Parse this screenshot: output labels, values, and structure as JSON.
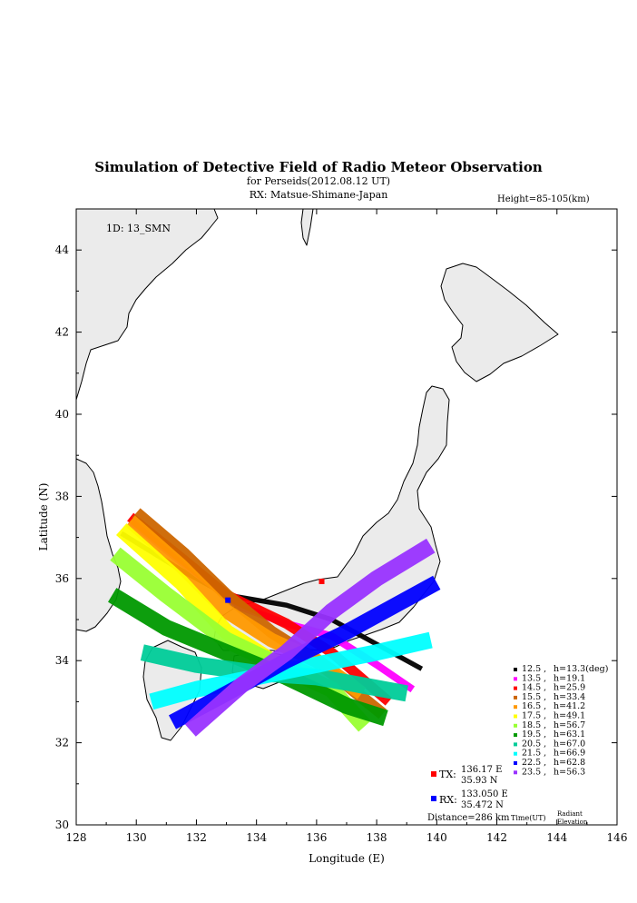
{
  "chart_data": {
    "type": "map",
    "title": "Simulation of Detective Field of Radio Meteor Observation",
    "subtitle1": "for Perseids(2012.08.12 UT)",
    "subtitle2": "RX: Matsue-Shimane-Japan",
    "height_note": "Height=85-105(km)",
    "id_label": "1D: 13_SMN",
    "xlabel": "Longitude (E)",
    "ylabel": "Latitude (N)",
    "xlim": [
      128,
      146
    ],
    "ylim": [
      30,
      45
    ],
    "xticks": [
      128,
      130,
      132,
      134,
      136,
      138,
      140,
      142,
      144,
      146
    ],
    "yticks": [
      30,
      32,
      34,
      36,
      38,
      40,
      42,
      44
    ],
    "tx": {
      "label": "TX:",
      "lon": 136.17,
      "lat": 35.93,
      "lon_text": "136.17 E",
      "lat_text": "35.93 N",
      "color": "#ff0000"
    },
    "rx": {
      "label": "RX:",
      "lon": 133.05,
      "lat": 35.472,
      "lon_text": "133.050 E",
      "lat_text": "35.472 N",
      "color": "#0000ff"
    },
    "distance": "Distance=286 km",
    "time_label": "Time(UT)",
    "radiant_label": "Radiant\nElevation",
    "series": [
      {
        "time": "12.5",
        "h": "h=13.3(deg)",
        "color": "#000000",
        "width": 0.12,
        "pts": [
          [
            129.5,
            37.1
          ],
          [
            131.5,
            36.2
          ],
          [
            133,
            35.6
          ],
          [
            135,
            35.35
          ],
          [
            136.5,
            35.0
          ],
          [
            138,
            34.4
          ],
          [
            139.5,
            33.8
          ]
        ]
      },
      {
        "time": "13.5",
        "h": "h=19.1",
        "color": "#ff00ff",
        "width": 0.18,
        "pts": [
          [
            129.8,
            37.4
          ],
          [
            131.5,
            36.4
          ],
          [
            133.5,
            35.3
          ],
          [
            135,
            34.9
          ],
          [
            136.5,
            34.6
          ],
          [
            138,
            33.9
          ],
          [
            139.2,
            33.3
          ]
        ]
      },
      {
        "time": "14.5",
        "h": "h=25.9",
        "color": "#ff0000",
        "width": 0.25,
        "pts": [
          [
            129.8,
            37.5
          ],
          [
            131.5,
            36.5
          ],
          [
            133,
            35.6
          ],
          [
            135,
            34.9
          ],
          [
            136.5,
            34.2
          ],
          [
            138.4,
            33.0
          ]
        ]
      },
      {
        "time": "15.5",
        "h": "h=33.4",
        "color": "#cc6600",
        "width": 0.3,
        "pts": [
          [
            130.0,
            37.6
          ],
          [
            131.6,
            36.6
          ],
          [
            133,
            35.6
          ],
          [
            134.5,
            34.7
          ],
          [
            136,
            34.0
          ],
          [
            138.2,
            32.7
          ]
        ]
      },
      {
        "time": "16.5",
        "h": "h=41.2",
        "color": "#ff9900",
        "width": 0.35,
        "pts": [
          [
            129.8,
            37.4
          ],
          [
            131.5,
            36.3
          ],
          [
            133,
            35.2
          ],
          [
            134.5,
            34.5
          ],
          [
            136,
            34.0
          ],
          [
            137.5,
            33.2
          ]
        ]
      },
      {
        "time": "17.5",
        "h": "h=49.1",
        "color": "#ffff00",
        "width": 0.38,
        "pts": [
          [
            129.5,
            37.2
          ],
          [
            131.5,
            35.9
          ],
          [
            133,
            34.7
          ],
          [
            134.5,
            34.0
          ],
          [
            136,
            33.6
          ]
        ]
      },
      {
        "time": "18.5",
        "h": "h=56.7",
        "color": "#99ff33",
        "width": 0.4,
        "pts": [
          [
            129.3,
            36.6
          ],
          [
            131,
            35.6
          ],
          [
            133,
            34.5
          ],
          [
            135,
            33.8
          ],
          [
            136.5,
            33.3
          ],
          [
            137.6,
            32.4
          ]
        ]
      },
      {
        "time": "19.5",
        "h": "h=63.1",
        "color": "#009900",
        "width": 0.4,
        "pts": [
          [
            129.2,
            35.6
          ],
          [
            131,
            34.8
          ],
          [
            133,
            34.2
          ],
          [
            135,
            33.6
          ],
          [
            137,
            32.9
          ],
          [
            138.3,
            32.6
          ]
        ]
      },
      {
        "time": "20.5",
        "h": "h=67.0",
        "color": "#00cc99",
        "width": 0.4,
        "pts": [
          [
            130.2,
            34.2
          ],
          [
            132,
            33.9
          ],
          [
            134,
            33.7
          ],
          [
            136,
            33.6
          ],
          [
            137.5,
            33.4
          ],
          [
            139,
            33.2
          ]
        ]
      },
      {
        "time": "21.5",
        "h": "h=66.9",
        "color": "#00ffff",
        "width": 0.4,
        "pts": [
          [
            130.5,
            33.0
          ],
          [
            132,
            33.3
          ],
          [
            134,
            33.6
          ],
          [
            136,
            33.9
          ],
          [
            138,
            34.2
          ],
          [
            139.8,
            34.5
          ]
        ]
      },
      {
        "time": "22.5",
        "h": "h=62.8",
        "color": "#0000ff",
        "width": 0.38,
        "pts": [
          [
            131.2,
            32.5
          ],
          [
            133,
            33.2
          ],
          [
            135,
            34.0
          ],
          [
            137,
            34.7
          ],
          [
            138.5,
            35.3
          ],
          [
            140,
            35.9
          ]
        ]
      },
      {
        "time": "23.5",
        "h": "h=56.3",
        "color": "#9933ff",
        "width": 0.4,
        "pts": [
          [
            131.8,
            32.3
          ],
          [
            133.5,
            33.4
          ],
          [
            135,
            34.2
          ],
          [
            136.5,
            35.2
          ],
          [
            138,
            36.0
          ],
          [
            139.8,
            36.8
          ]
        ]
      }
    ]
  }
}
